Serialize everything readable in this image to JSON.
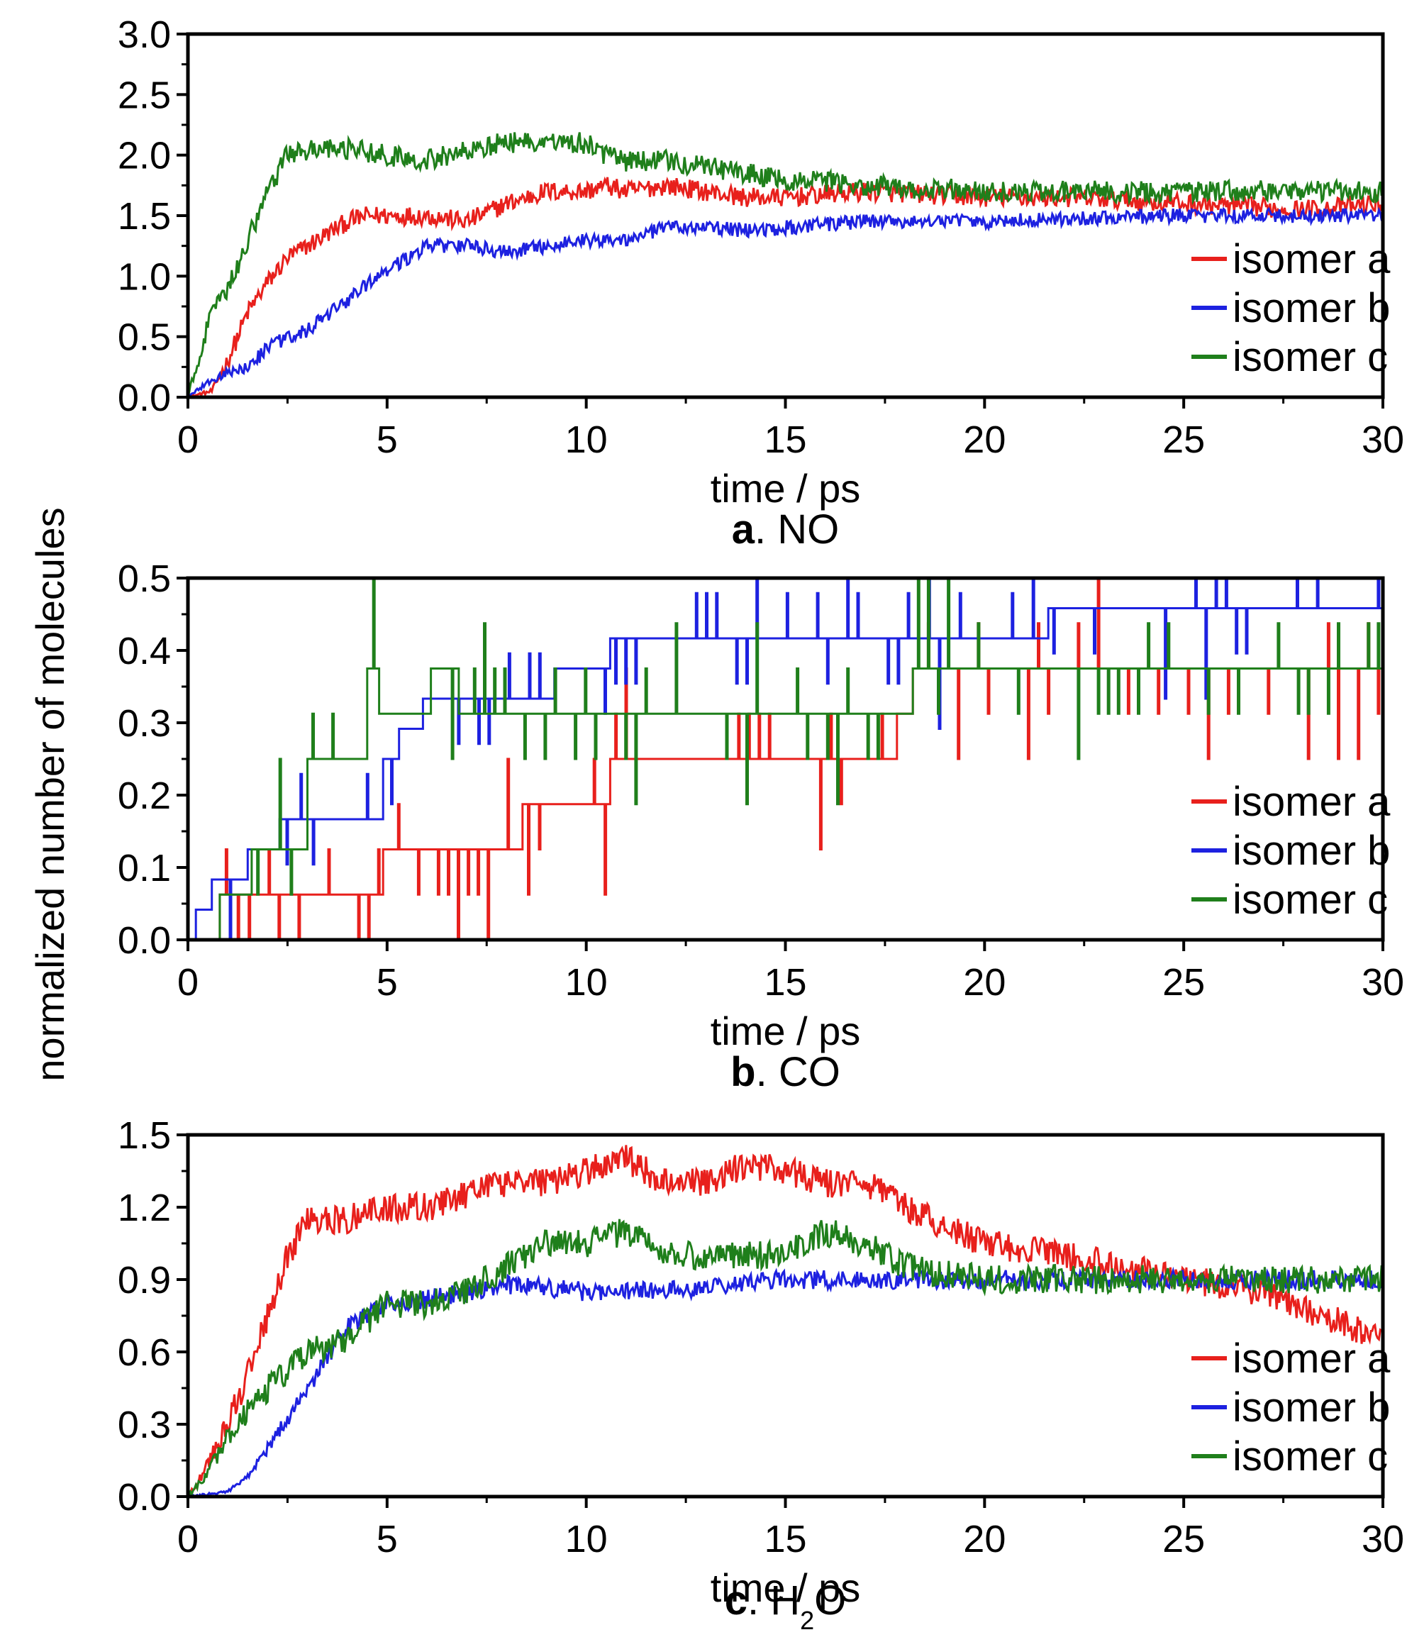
{
  "figure": {
    "ylabel": "normalized number of molecules"
  },
  "chart_data": [
    {
      "type": "line",
      "panel_letter": "a",
      "caption": ". NO",
      "xlabel": "time / ps",
      "xlim": [
        0,
        30
      ],
      "ylim": [
        0,
        3
      ],
      "xticks": [
        0,
        5,
        10,
        15,
        20,
        25,
        30
      ],
      "yticks": [
        0.0,
        0.5,
        1.0,
        1.5,
        2.0,
        2.5,
        3.0
      ],
      "ytick_labels": [
        "0.0",
        "0.5",
        "1.0",
        "1.5",
        "2.0",
        "2.5",
        "3.0"
      ],
      "series": [
        {
          "name": "isomer a",
          "color": "#e8201c",
          "noise": 0.08,
          "step": false,
          "x": [
            0,
            0.6,
            1.0,
            1.5,
            2.0,
            2.5,
            3.0,
            3.5,
            4.0,
            4.5,
            5.0,
            6.0,
            7.0,
            8.0,
            9.0,
            10.0,
            10.5,
            11.0,
            12.0,
            13.0,
            14.0,
            15.0,
            17.0,
            20.0,
            22.0,
            25.0,
            28.0,
            30.0
          ],
          "y": [
            0,
            0.05,
            0.3,
            0.7,
            0.95,
            1.15,
            1.25,
            1.35,
            1.45,
            1.5,
            1.5,
            1.5,
            1.45,
            1.6,
            1.7,
            1.7,
            1.75,
            1.7,
            1.75,
            1.7,
            1.65,
            1.65,
            1.7,
            1.65,
            1.65,
            1.6,
            1.55,
            1.6
          ]
        },
        {
          "name": "isomer b",
          "color": "#1d21e0",
          "noise": 0.06,
          "step": false,
          "x": [
            0,
            0.5,
            1.0,
            1.5,
            2.0,
            2.5,
            3.0,
            4.0,
            5.0,
            6.0,
            7.0,
            8.0,
            9.0,
            10.0,
            11.0,
            12.0,
            13.0,
            14.0,
            15.0,
            17.0,
            20.0,
            25.0,
            30.0
          ],
          "y": [
            0,
            0.12,
            0.2,
            0.25,
            0.4,
            0.5,
            0.55,
            0.8,
            1.05,
            1.25,
            1.25,
            1.2,
            1.25,
            1.3,
            1.3,
            1.4,
            1.4,
            1.38,
            1.4,
            1.45,
            1.45,
            1.5,
            1.5
          ]
        },
        {
          "name": "isomer c",
          "color": "#1f7f1b",
          "noise": 0.09,
          "step": false,
          "x": [
            0,
            0.5,
            1.0,
            1.5,
            2.0,
            2.5,
            3.0,
            4.0,
            5.0,
            6.0,
            7.0,
            8.0,
            9.0,
            10.0,
            10.5,
            11.0,
            12.0,
            13.0,
            15.0,
            17.0,
            20.0,
            25.0,
            30.0
          ],
          "y": [
            0,
            0.6,
            0.9,
            1.3,
            1.7,
            2.0,
            2.05,
            2.05,
            2.0,
            1.95,
            2.05,
            2.1,
            2.1,
            2.1,
            2.0,
            1.95,
            1.95,
            1.9,
            1.8,
            1.75,
            1.7,
            1.7,
            1.7
          ]
        }
      ]
    },
    {
      "type": "line",
      "panel_letter": "b",
      "caption": ". CO",
      "xlabel": "time / ps",
      "xlim": [
        0,
        30
      ],
      "ylim": [
        0,
        0.5
      ],
      "xticks": [
        0,
        5,
        10,
        15,
        20,
        25,
        30
      ],
      "yticks": [
        0.0,
        0.1,
        0.2,
        0.3,
        0.4,
        0.5
      ],
      "ytick_labels": [
        "0.0",
        "0.1",
        "0.2",
        "0.3",
        "0.4",
        "0.5"
      ],
      "series": [
        {
          "name": "isomer a",
          "color": "#e8201c",
          "noise": 0,
          "step": true,
          "x": [
            0,
            0.8,
            1.4,
            4.9,
            8.4,
            10.6,
            17.8,
            18.2,
            30.0
          ],
          "y": [
            0,
            0.0625,
            0.0625,
            0.125,
            0.1875,
            0.25,
            0.3125,
            0.375,
            0.375
          ]
        },
        {
          "name": "isomer b",
          "color": "#1d21e0",
          "noise": 0,
          "step": true,
          "x": [
            0,
            0.2,
            0.6,
            1.5,
            2.3,
            3.0,
            4.9,
            5.3,
            5.9,
            6.4,
            9.2,
            10.6,
            18.2,
            21.6,
            30.0
          ],
          "y": [
            0,
            0.0417,
            0.0833,
            0.125,
            0.1667,
            0.1667,
            0.25,
            0.2917,
            0.3333,
            0.3333,
            0.375,
            0.4167,
            0.4167,
            0.4583,
            0.4583
          ]
        },
        {
          "name": "isomer c",
          "color": "#1f7f1b",
          "noise": 0,
          "step": true,
          "x": [
            0,
            0.8,
            1.6,
            3.0,
            4.5,
            4.8,
            6.1,
            6.8,
            18.2,
            30.0
          ],
          "y": [
            0,
            0.0625,
            0.125,
            0.25,
            0.375,
            0.3125,
            0.375,
            0.3125,
            0.375,
            0.375
          ]
        }
      ]
    },
    {
      "type": "line",
      "panel_letter": "c",
      "caption": ". H",
      "caption_sub": "2",
      "caption_tail": "O",
      "xlabel": "time / ps",
      "xlim": [
        0,
        30
      ],
      "ylim": [
        0,
        1.5
      ],
      "xticks": [
        0,
        5,
        10,
        15,
        20,
        25,
        30
      ],
      "yticks": [
        0.0,
        0.3,
        0.6,
        0.9,
        1.2,
        1.5
      ],
      "ytick_labels": [
        "0.0",
        "0.3",
        "0.6",
        "0.9",
        "1.2",
        "1.5"
      ],
      "series": [
        {
          "name": "isomer a",
          "color": "#e8201c",
          "noise": 0.06,
          "step": false,
          "x": [
            0,
            0.4,
            1.0,
            1.5,
            2.0,
            2.5,
            3.0,
            4.0,
            5.0,
            6.0,
            7.0,
            8.0,
            9.0,
            10.0,
            11.0,
            12.0,
            13.0,
            14.0,
            15.0,
            16.0,
            17.0,
            18.0,
            20.0,
            22.0,
            25.0,
            27.0,
            28.5,
            30.0
          ],
          "y": [
            0,
            0.1,
            0.3,
            0.5,
            0.75,
            1.0,
            1.15,
            1.15,
            1.2,
            1.2,
            1.25,
            1.3,
            1.3,
            1.35,
            1.4,
            1.3,
            1.3,
            1.38,
            1.35,
            1.3,
            1.3,
            1.2,
            1.05,
            1.0,
            0.9,
            0.85,
            0.75,
            0.65
          ]
        },
        {
          "name": "isomer b",
          "color": "#1d21e0",
          "noise": 0.04,
          "step": false,
          "x": [
            0,
            1.0,
            1.5,
            2.0,
            3.0,
            4.0,
            5.0,
            6.0,
            7.0,
            8.0,
            10.0,
            12.0,
            15.0,
            20.0,
            25.0,
            30.0
          ],
          "y": [
            0,
            0.02,
            0.08,
            0.2,
            0.45,
            0.7,
            0.8,
            0.82,
            0.85,
            0.88,
            0.85,
            0.85,
            0.9,
            0.9,
            0.9,
            0.9
          ]
        },
        {
          "name": "isomer c",
          "color": "#1f7f1b",
          "noise": 0.06,
          "step": false,
          "x": [
            0,
            0.5,
            1.0,
            1.5,
            2.0,
            3.0,
            4.0,
            5.0,
            6.0,
            7.0,
            8.0,
            9.0,
            10.0,
            11.0,
            12.0,
            13.0,
            15.0,
            16.0,
            17.0,
            18.0,
            20.0,
            25.0,
            30.0
          ],
          "y": [
            0,
            0.1,
            0.25,
            0.35,
            0.45,
            0.6,
            0.65,
            0.8,
            0.8,
            0.85,
            0.95,
            1.05,
            1.05,
            1.1,
            1.0,
            1.0,
            1.0,
            1.1,
            1.05,
            0.95,
            0.9,
            0.9,
            0.9
          ]
        }
      ]
    }
  ]
}
